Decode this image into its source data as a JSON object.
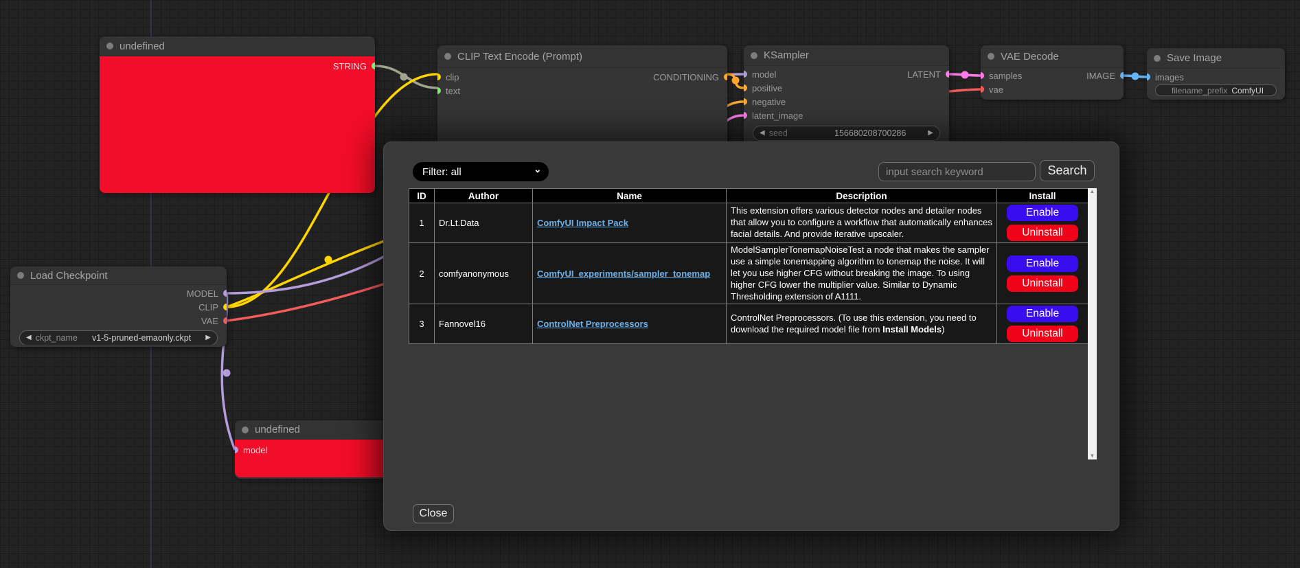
{
  "canvas": {
    "nodes": {
      "undefined_top": {
        "title": "undefined",
        "outputs": [
          "STRING"
        ]
      },
      "clip_text_encode": {
        "title": "CLIP Text Encode (Prompt)",
        "inputs": [
          "clip",
          "text"
        ],
        "outputs": [
          "CONDITIONING"
        ]
      },
      "ksampler": {
        "title": "KSampler",
        "inputs": [
          "model",
          "positive",
          "negative",
          "latent_image"
        ],
        "outputs": [
          "LATENT"
        ],
        "widget": {
          "name": "seed",
          "value": "156680208700286"
        }
      },
      "vae_decode": {
        "title": "VAE Decode",
        "inputs": [
          "samples",
          "vae"
        ],
        "outputs": [
          "IMAGE"
        ]
      },
      "save_image": {
        "title": "Save Image",
        "inputs": [
          "images"
        ],
        "widget": {
          "name": "filename_prefix",
          "value": "ComfyUI"
        }
      },
      "load_checkpoint": {
        "title": "Load Checkpoint",
        "outputs": [
          "MODEL",
          "CLIP",
          "VAE"
        ],
        "widget": {
          "name": "ckpt_name",
          "value": "v1-5-pruned-emaonly.ckpt"
        }
      },
      "undefined_bottom": {
        "title": "undefined",
        "inputs": [
          "model"
        ]
      }
    },
    "colors": {
      "model": "#b39ddb",
      "clip": "#ffd500",
      "vae": "#f55c5c",
      "conditioning": "#ffa931",
      "latent": "#ff7bea",
      "image": "#64b5f6",
      "string_wire": "#9fa58f",
      "string_slot": "#7ded6e",
      "node_error_body": "#f20d28"
    }
  },
  "modal": {
    "filter": {
      "value": "Filter: all"
    },
    "search": {
      "placeholder": "input search keyword",
      "button_label": "Search"
    },
    "table": {
      "headers": [
        "ID",
        "Author",
        "Name",
        "Description",
        "Install"
      ],
      "rows": [
        {
          "id": "1",
          "author": "Dr.Lt.Data",
          "name": "ComfyUI Impact Pack",
          "desc": [
            {
              "text": "This extension offers various detector nodes and detailer nodes that allow you to configure a workflow that automatically enhances facial details. And provide iterative upscaler.",
              "bold": false
            }
          ],
          "buttons": [
            {
              "label": "Enable",
              "type": "enable"
            },
            {
              "label": "Uninstall",
              "type": "uninstall"
            }
          ]
        },
        {
          "id": "2",
          "author": "comfyanonymous",
          "name": "ComfyUI_experiments/sampler_tonemap",
          "desc": [
            {
              "text": "ModelSamplerTonemapNoiseTest a node that makes the sampler use a simple tonemapping algorithm to tonemap the noise. It will let you use higher CFG without breaking the image. To using higher CFG lower the multiplier value. Similar to Dynamic Thresholding extension of A1111.",
              "bold": false
            }
          ],
          "buttons": [
            {
              "label": "Enable",
              "type": "enable"
            },
            {
              "label": "Uninstall",
              "type": "uninstall"
            }
          ]
        },
        {
          "id": "3",
          "author": "Fannovel16",
          "name": "ControlNet Preprocessors",
          "desc": [
            {
              "text": "ControlNet Preprocessors. (To use this extension, you need to download the required model file from ",
              "bold": false
            },
            {
              "text": "Install Models",
              "bold": true
            },
            {
              "text": ")",
              "bold": false
            }
          ],
          "buttons": [
            {
              "label": "Enable",
              "type": "enable"
            },
            {
              "label": "Uninstall",
              "type": "uninstall"
            }
          ]
        }
      ]
    },
    "close_label": "Close",
    "button_colors": {
      "enable": "#3a0df0",
      "uninstall": "#f00218"
    }
  }
}
